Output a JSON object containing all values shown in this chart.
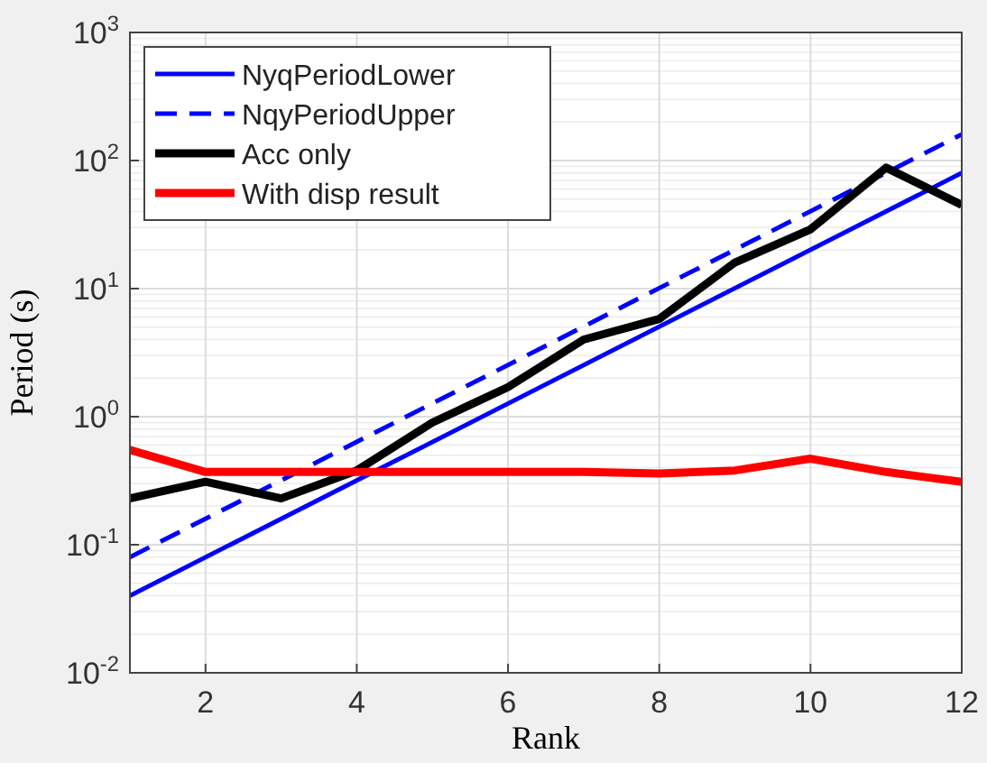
{
  "chart_data": {
    "type": "line",
    "xlabel": "Rank",
    "ylabel": "Period (s)",
    "log": "y",
    "grid": true,
    "legend": "top left",
    "xlim": [
      1,
      12
    ],
    "xticks": [
      2,
      4,
      6,
      8,
      10,
      12
    ],
    "ylim": [
      0.01,
      1000
    ],
    "yticks": [
      {
        "value": 0.01,
        "label": "10$^{-2}$"
      },
      {
        "value": 0.1,
        "label": "10$^{-1}$"
      },
      {
        "value": 1,
        "label": "10$^{0}$"
      },
      {
        "value": 10,
        "label": "10$^{1}$"
      },
      {
        "value": 100,
        "label": "10$^{2}$"
      },
      {
        "value": 1000,
        "label": "10$^{3}$"
      }
    ],
    "series": [
      {
        "name": "NyqPeriodLower",
        "color": "#0000ff",
        "x": [
          1,
          12
        ],
        "values": [
          0.04,
          80
        ],
        "line_style": "solid"
      },
      {
        "name": "NqyPeriodUpper",
        "color": "#0000ff",
        "x": [
          1,
          12
        ],
        "values": [
          0.08,
          160
        ],
        "line_style": "dashed"
      },
      {
        "name": "Acc only",
        "color": "#000000",
        "x": [
          1,
          2,
          3,
          4,
          5,
          6,
          7,
          8,
          9,
          10,
          11,
          12
        ],
        "values": [
          0.23,
          0.31,
          0.23,
          0.38,
          0.9,
          1.7,
          4.0,
          5.8,
          16,
          29,
          88,
          45
        ],
        "line_style": "solid"
      },
      {
        "name": "With disp result",
        "color": "#ff0000",
        "x": [
          1,
          2,
          3,
          4,
          5,
          6,
          7,
          8,
          9,
          10,
          11,
          12
        ],
        "values": [
          0.55,
          0.37,
          0.37,
          0.37,
          0.37,
          0.37,
          0.37,
          0.36,
          0.38,
          0.47,
          0.37,
          0.31
        ],
        "line_style": "solid"
      }
    ]
  }
}
